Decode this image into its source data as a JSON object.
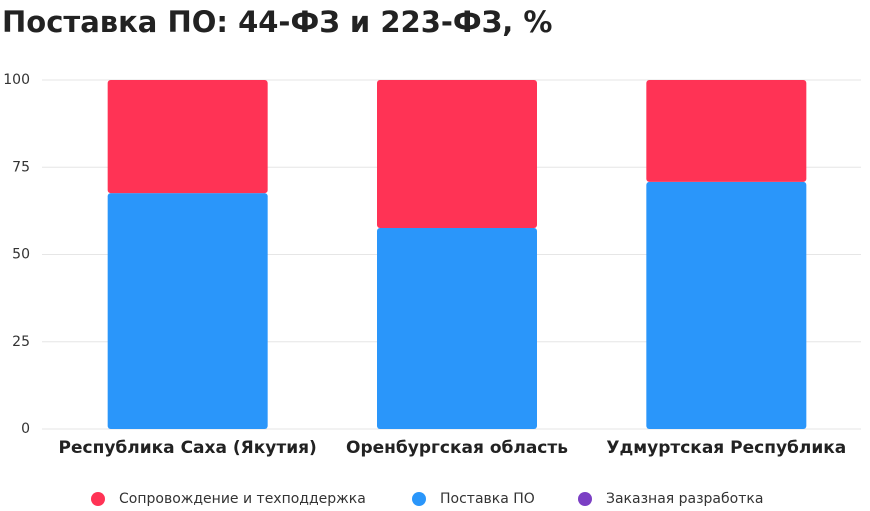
{
  "chart_data": {
    "type": "stacked-bar",
    "title": "Поставка ПО: 44-ФЗ и 223-ФЗ, %",
    "categories": [
      "Республика Саха (Якутия)",
      "Оренбургская область",
      "Удмуртская Республика"
    ],
    "series": [
      {
        "name": "Сопровождение и техподдержка",
        "color": "#ff3355",
        "values": [
          32.4,
          42.4,
          29.2
        ]
      },
      {
        "name": "Поставка ПО",
        "color": "#2a96fa",
        "values": [
          67.6,
          57.6,
          70.8
        ]
      },
      {
        "name": "Заказная разработка",
        "color": "#7b3fc4",
        "values": [
          0,
          0,
          0
        ]
      }
    ],
    "ylim": [
      0,
      100
    ],
    "yticks": [
      0,
      25,
      50,
      75,
      100
    ],
    "grid": true
  }
}
